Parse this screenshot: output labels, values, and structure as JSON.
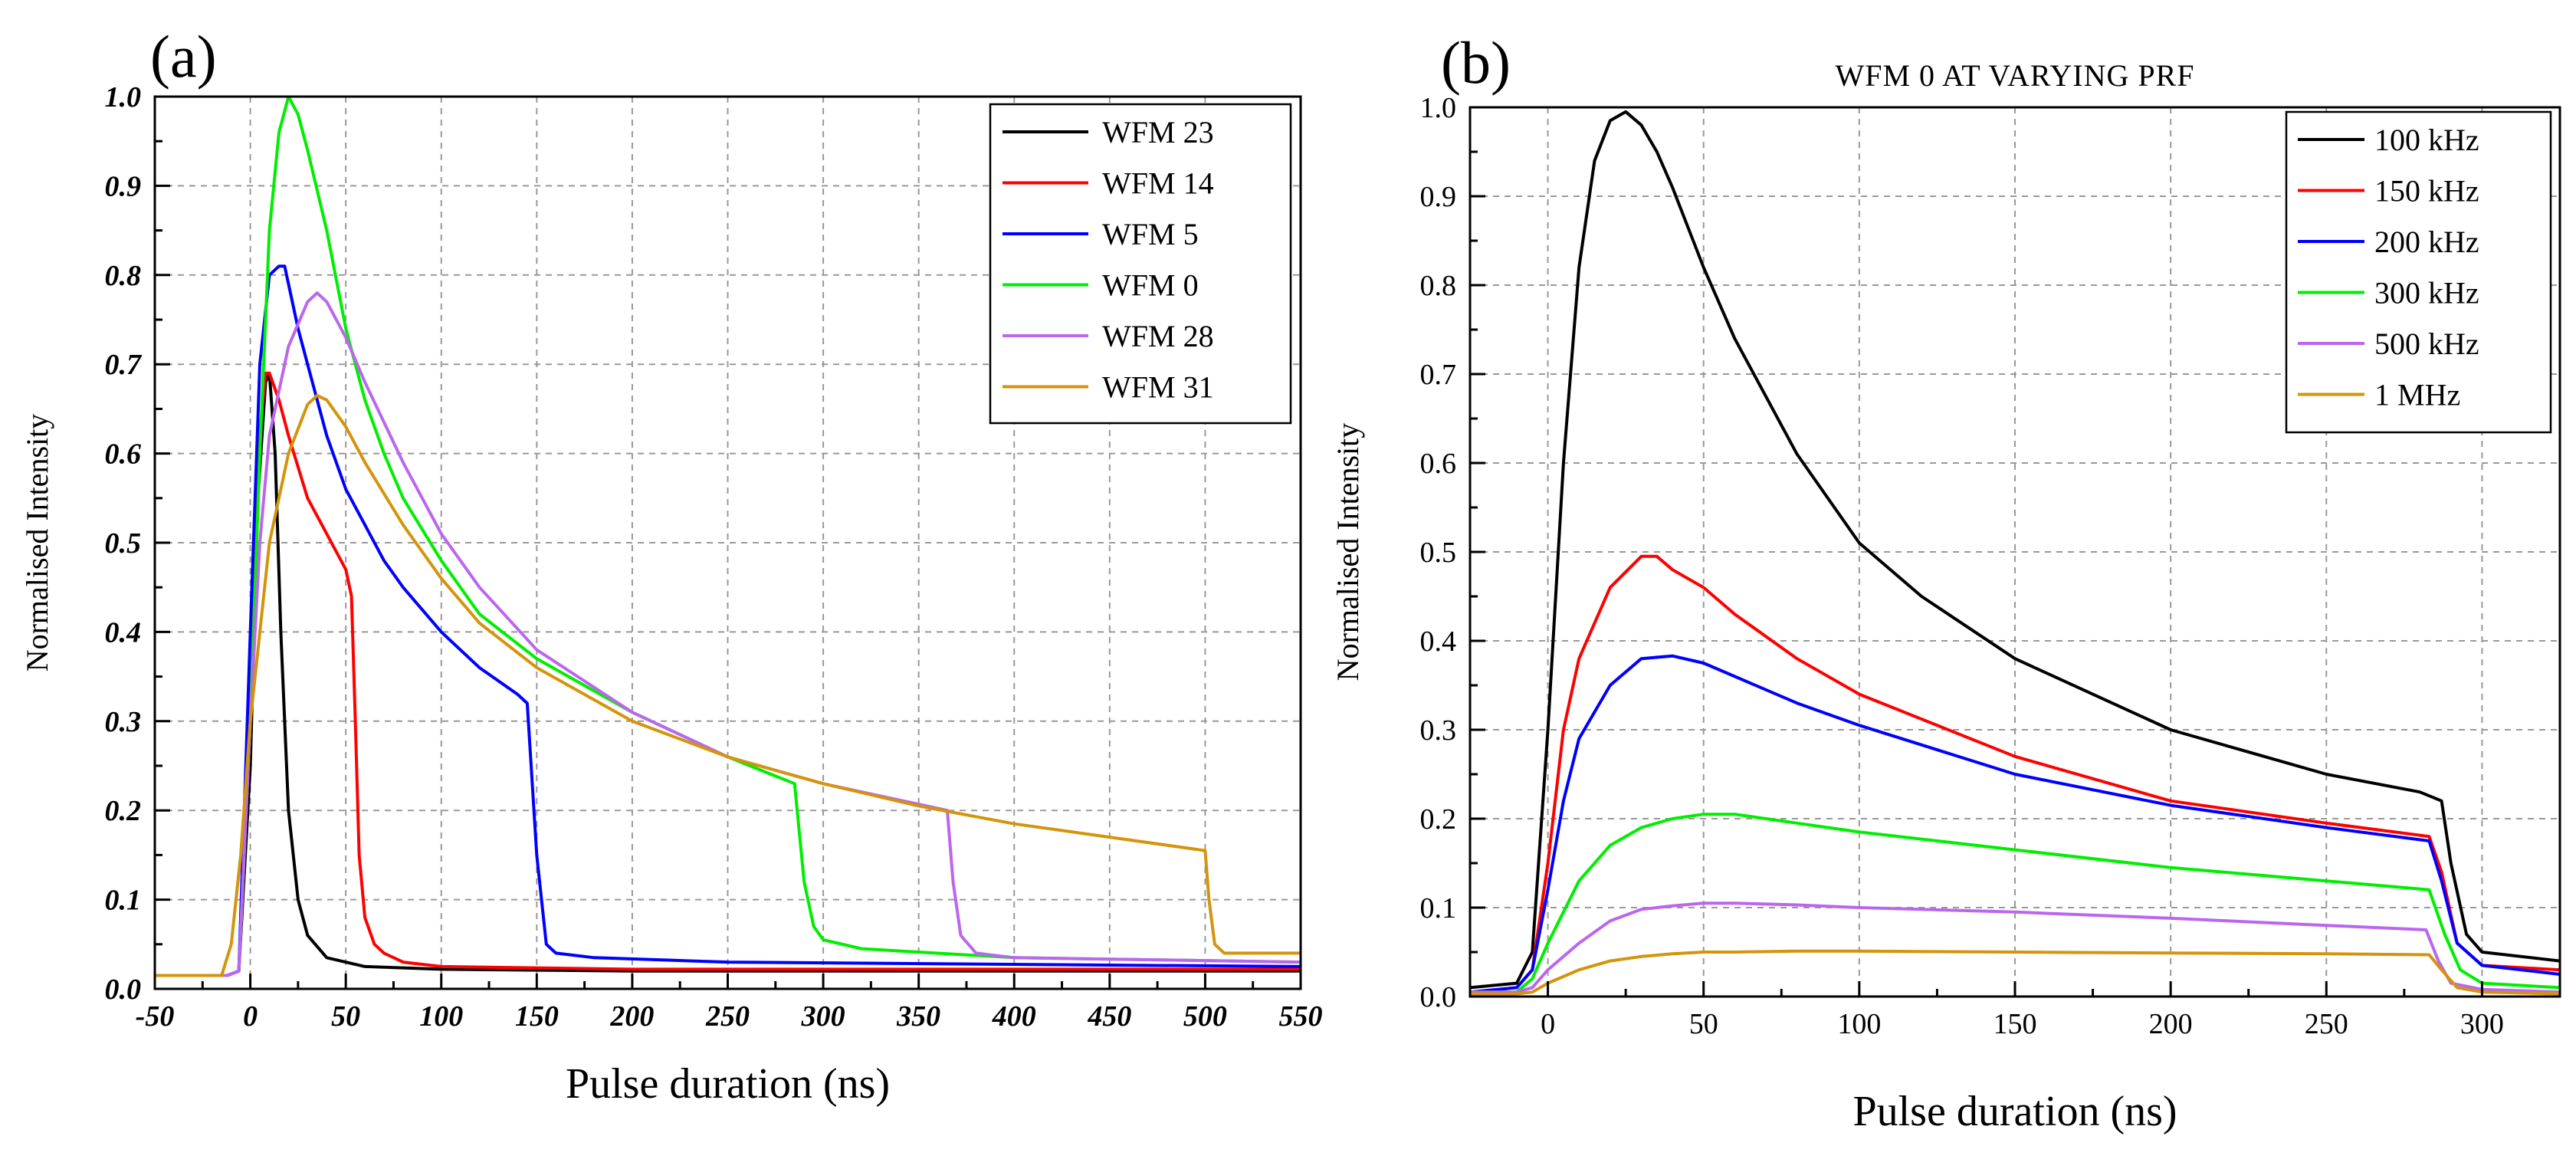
{
  "chart_data": [
    {
      "panel_label": "(a)",
      "type": "line",
      "title": "",
      "xlabel": "Pulse duration (ns)",
      "ylabel": "Normalised Intensity",
      "xlim": [
        -50,
        550
      ],
      "ylim": [
        0.0,
        1.0
      ],
      "x_ticks": [
        -50,
        0,
        50,
        100,
        150,
        200,
        250,
        300,
        350,
        400,
        450,
        500,
        550
      ],
      "y_ticks": [
        0.0,
        0.1,
        0.2,
        0.3,
        0.4,
        0.5,
        0.6,
        0.7,
        0.8,
        0.9,
        1.0
      ],
      "grid": true,
      "legend": "top-right",
      "series": [
        {
          "name": "WFM 23",
          "color": "#000000",
          "x": [
            -50,
            -12,
            -6,
            0,
            4,
            8,
            10,
            13,
            16,
            20,
            25,
            30,
            40,
            60,
            100,
            200,
            400,
            550
          ],
          "y": [
            0.015,
            0.015,
            0.02,
            0.25,
            0.55,
            0.68,
            0.69,
            0.6,
            0.4,
            0.2,
            0.1,
            0.06,
            0.035,
            0.025,
            0.022,
            0.02,
            0.02,
            0.02
          ]
        },
        {
          "name": "WFM 14",
          "color": "#ff0000",
          "x": [
            -50,
            -12,
            -6,
            0,
            4,
            8,
            10,
            15,
            20,
            30,
            40,
            50,
            53,
            55,
            57,
            60,
            65,
            70,
            80,
            100,
            200,
            550
          ],
          "y": [
            0.015,
            0.015,
            0.02,
            0.3,
            0.6,
            0.69,
            0.69,
            0.66,
            0.62,
            0.55,
            0.51,
            0.47,
            0.44,
            0.3,
            0.15,
            0.08,
            0.05,
            0.04,
            0.03,
            0.025,
            0.022,
            0.022
          ]
        },
        {
          "name": "WFM 5",
          "color": "#0000ff",
          "x": [
            -50,
            -12,
            -6,
            0,
            5,
            10,
            15,
            18,
            20,
            25,
            30,
            40,
            50,
            60,
            70,
            80,
            100,
            120,
            140,
            145,
            150,
            155,
            160,
            180,
            250,
            550
          ],
          "y": [
            0.015,
            0.015,
            0.02,
            0.4,
            0.7,
            0.8,
            0.81,
            0.81,
            0.79,
            0.74,
            0.7,
            0.62,
            0.56,
            0.52,
            0.48,
            0.45,
            0.4,
            0.36,
            0.33,
            0.32,
            0.15,
            0.05,
            0.04,
            0.035,
            0.03,
            0.025
          ]
        },
        {
          "name": "WFM 0",
          "color": "#00ee00",
          "x": [
            -50,
            -12,
            -6,
            0,
            5,
            10,
            15,
            20,
            25,
            30,
            40,
            50,
            60,
            70,
            80,
            100,
            120,
            150,
            200,
            250,
            285,
            290,
            295,
            300,
            320,
            400,
            550
          ],
          "y": [
            0.015,
            0.015,
            0.02,
            0.3,
            0.6,
            0.85,
            0.96,
            1.0,
            0.98,
            0.94,
            0.85,
            0.74,
            0.66,
            0.6,
            0.55,
            0.48,
            0.42,
            0.37,
            0.31,
            0.26,
            0.23,
            0.12,
            0.07,
            0.055,
            0.045,
            0.035,
            0.03
          ]
        },
        {
          "name": "WFM 28",
          "color": "#bb66ee",
          "x": [
            -50,
            -12,
            -6,
            0,
            5,
            10,
            20,
            30,
            35,
            40,
            50,
            60,
            80,
            100,
            120,
            150,
            200,
            250,
            300,
            365,
            368,
            372,
            380,
            400,
            550
          ],
          "y": [
            0.015,
            0.015,
            0.02,
            0.3,
            0.5,
            0.62,
            0.72,
            0.77,
            0.78,
            0.77,
            0.73,
            0.68,
            0.59,
            0.51,
            0.45,
            0.38,
            0.31,
            0.26,
            0.23,
            0.2,
            0.12,
            0.06,
            0.04,
            0.035,
            0.03
          ]
        },
        {
          "name": "WFM 31",
          "color": "#d4940b",
          "x": [
            -50,
            -15,
            -10,
            -5,
            0,
            10,
            20,
            30,
            35,
            40,
            50,
            60,
            80,
            100,
            120,
            150,
            200,
            250,
            300,
            350,
            400,
            450,
            500,
            502,
            505,
            510,
            550
          ],
          "y": [
            0.015,
            0.015,
            0.05,
            0.15,
            0.3,
            0.5,
            0.6,
            0.655,
            0.665,
            0.66,
            0.63,
            0.59,
            0.52,
            0.46,
            0.41,
            0.36,
            0.3,
            0.26,
            0.23,
            0.205,
            0.185,
            0.17,
            0.155,
            0.1,
            0.05,
            0.04,
            0.04
          ]
        }
      ]
    },
    {
      "panel_label": "(b)",
      "type": "line",
      "title": "WFM 0 AT VARYING PRF",
      "xlabel": "Pulse duration (ns)",
      "ylabel": "Normalised Intensity",
      "xlim": [
        -25,
        325
      ],
      "ylim": [
        0.0,
        1.0
      ],
      "x_ticks": [
        0,
        50,
        100,
        150,
        200,
        250,
        300
      ],
      "y_ticks": [
        0.0,
        0.1,
        0.2,
        0.3,
        0.4,
        0.5,
        0.6,
        0.7,
        0.8,
        0.9,
        1.0
      ],
      "grid": true,
      "legend": "top-right",
      "series": [
        {
          "name": "100 kHz",
          "color": "#000000",
          "x": [
            -25,
            -10,
            -5,
            0,
            5,
            10,
            15,
            20,
            25,
            30,
            35,
            40,
            50,
            60,
            80,
            100,
            120,
            150,
            200,
            250,
            280,
            287,
            290,
            295,
            300,
            325
          ],
          "y": [
            0.01,
            0.015,
            0.05,
            0.3,
            0.6,
            0.82,
            0.94,
            0.985,
            0.995,
            0.98,
            0.95,
            0.91,
            0.82,
            0.74,
            0.61,
            0.51,
            0.45,
            0.38,
            0.3,
            0.25,
            0.23,
            0.22,
            0.15,
            0.07,
            0.05,
            0.04
          ]
        },
        {
          "name": "150 kHz",
          "color": "#ff0000",
          "x": [
            -25,
            -10,
            -5,
            0,
            5,
            10,
            20,
            30,
            35,
            40,
            50,
            60,
            80,
            100,
            150,
            200,
            250,
            283,
            287,
            292,
            300,
            325
          ],
          "y": [
            0.005,
            0.01,
            0.03,
            0.15,
            0.3,
            0.38,
            0.46,
            0.495,
            0.495,
            0.48,
            0.46,
            0.43,
            0.38,
            0.34,
            0.27,
            0.22,
            0.195,
            0.18,
            0.14,
            0.06,
            0.035,
            0.03
          ]
        },
        {
          "name": "200 kHz",
          "color": "#0000ff",
          "x": [
            -25,
            -10,
            -5,
            0,
            5,
            10,
            20,
            30,
            40,
            50,
            60,
            80,
            100,
            150,
            200,
            250,
            283,
            287,
            292,
            300,
            325
          ],
          "y": [
            0.005,
            0.01,
            0.03,
            0.12,
            0.22,
            0.29,
            0.35,
            0.38,
            0.383,
            0.375,
            0.36,
            0.33,
            0.305,
            0.25,
            0.215,
            0.19,
            0.175,
            0.13,
            0.06,
            0.035,
            0.025
          ]
        },
        {
          "name": "300 kHz",
          "color": "#00ee00",
          "x": [
            -25,
            -10,
            -5,
            0,
            10,
            20,
            30,
            40,
            50,
            60,
            80,
            100,
            150,
            200,
            250,
            283,
            288,
            293,
            300,
            325
          ],
          "y": [
            0.005,
            0.005,
            0.02,
            0.06,
            0.13,
            0.17,
            0.19,
            0.2,
            0.205,
            0.205,
            0.195,
            0.185,
            0.165,
            0.145,
            0.13,
            0.12,
            0.07,
            0.03,
            0.015,
            0.01
          ]
        },
        {
          "name": "500 kHz",
          "color": "#bb66ee",
          "x": [
            -25,
            -10,
            -5,
            0,
            10,
            20,
            30,
            40,
            50,
            60,
            80,
            100,
            150,
            200,
            250,
            282,
            286,
            290,
            300,
            325
          ],
          "y": [
            0.005,
            0.005,
            0.01,
            0.03,
            0.06,
            0.085,
            0.098,
            0.102,
            0.105,
            0.105,
            0.103,
            0.1,
            0.095,
            0.088,
            0.08,
            0.075,
            0.04,
            0.015,
            0.008,
            0.005
          ]
        },
        {
          "name": "1 MHz",
          "color": "#d4940b",
          "x": [
            -25,
            -10,
            -5,
            0,
            10,
            20,
            30,
            40,
            50,
            60,
            80,
            100,
            150,
            200,
            250,
            283,
            287,
            292,
            300,
            325
          ],
          "y": [
            0.003,
            0.003,
            0.005,
            0.015,
            0.03,
            0.04,
            0.045,
            0.048,
            0.05,
            0.05,
            0.051,
            0.051,
            0.05,
            0.049,
            0.048,
            0.047,
            0.03,
            0.01,
            0.005,
            0.003
          ]
        }
      ]
    }
  ]
}
